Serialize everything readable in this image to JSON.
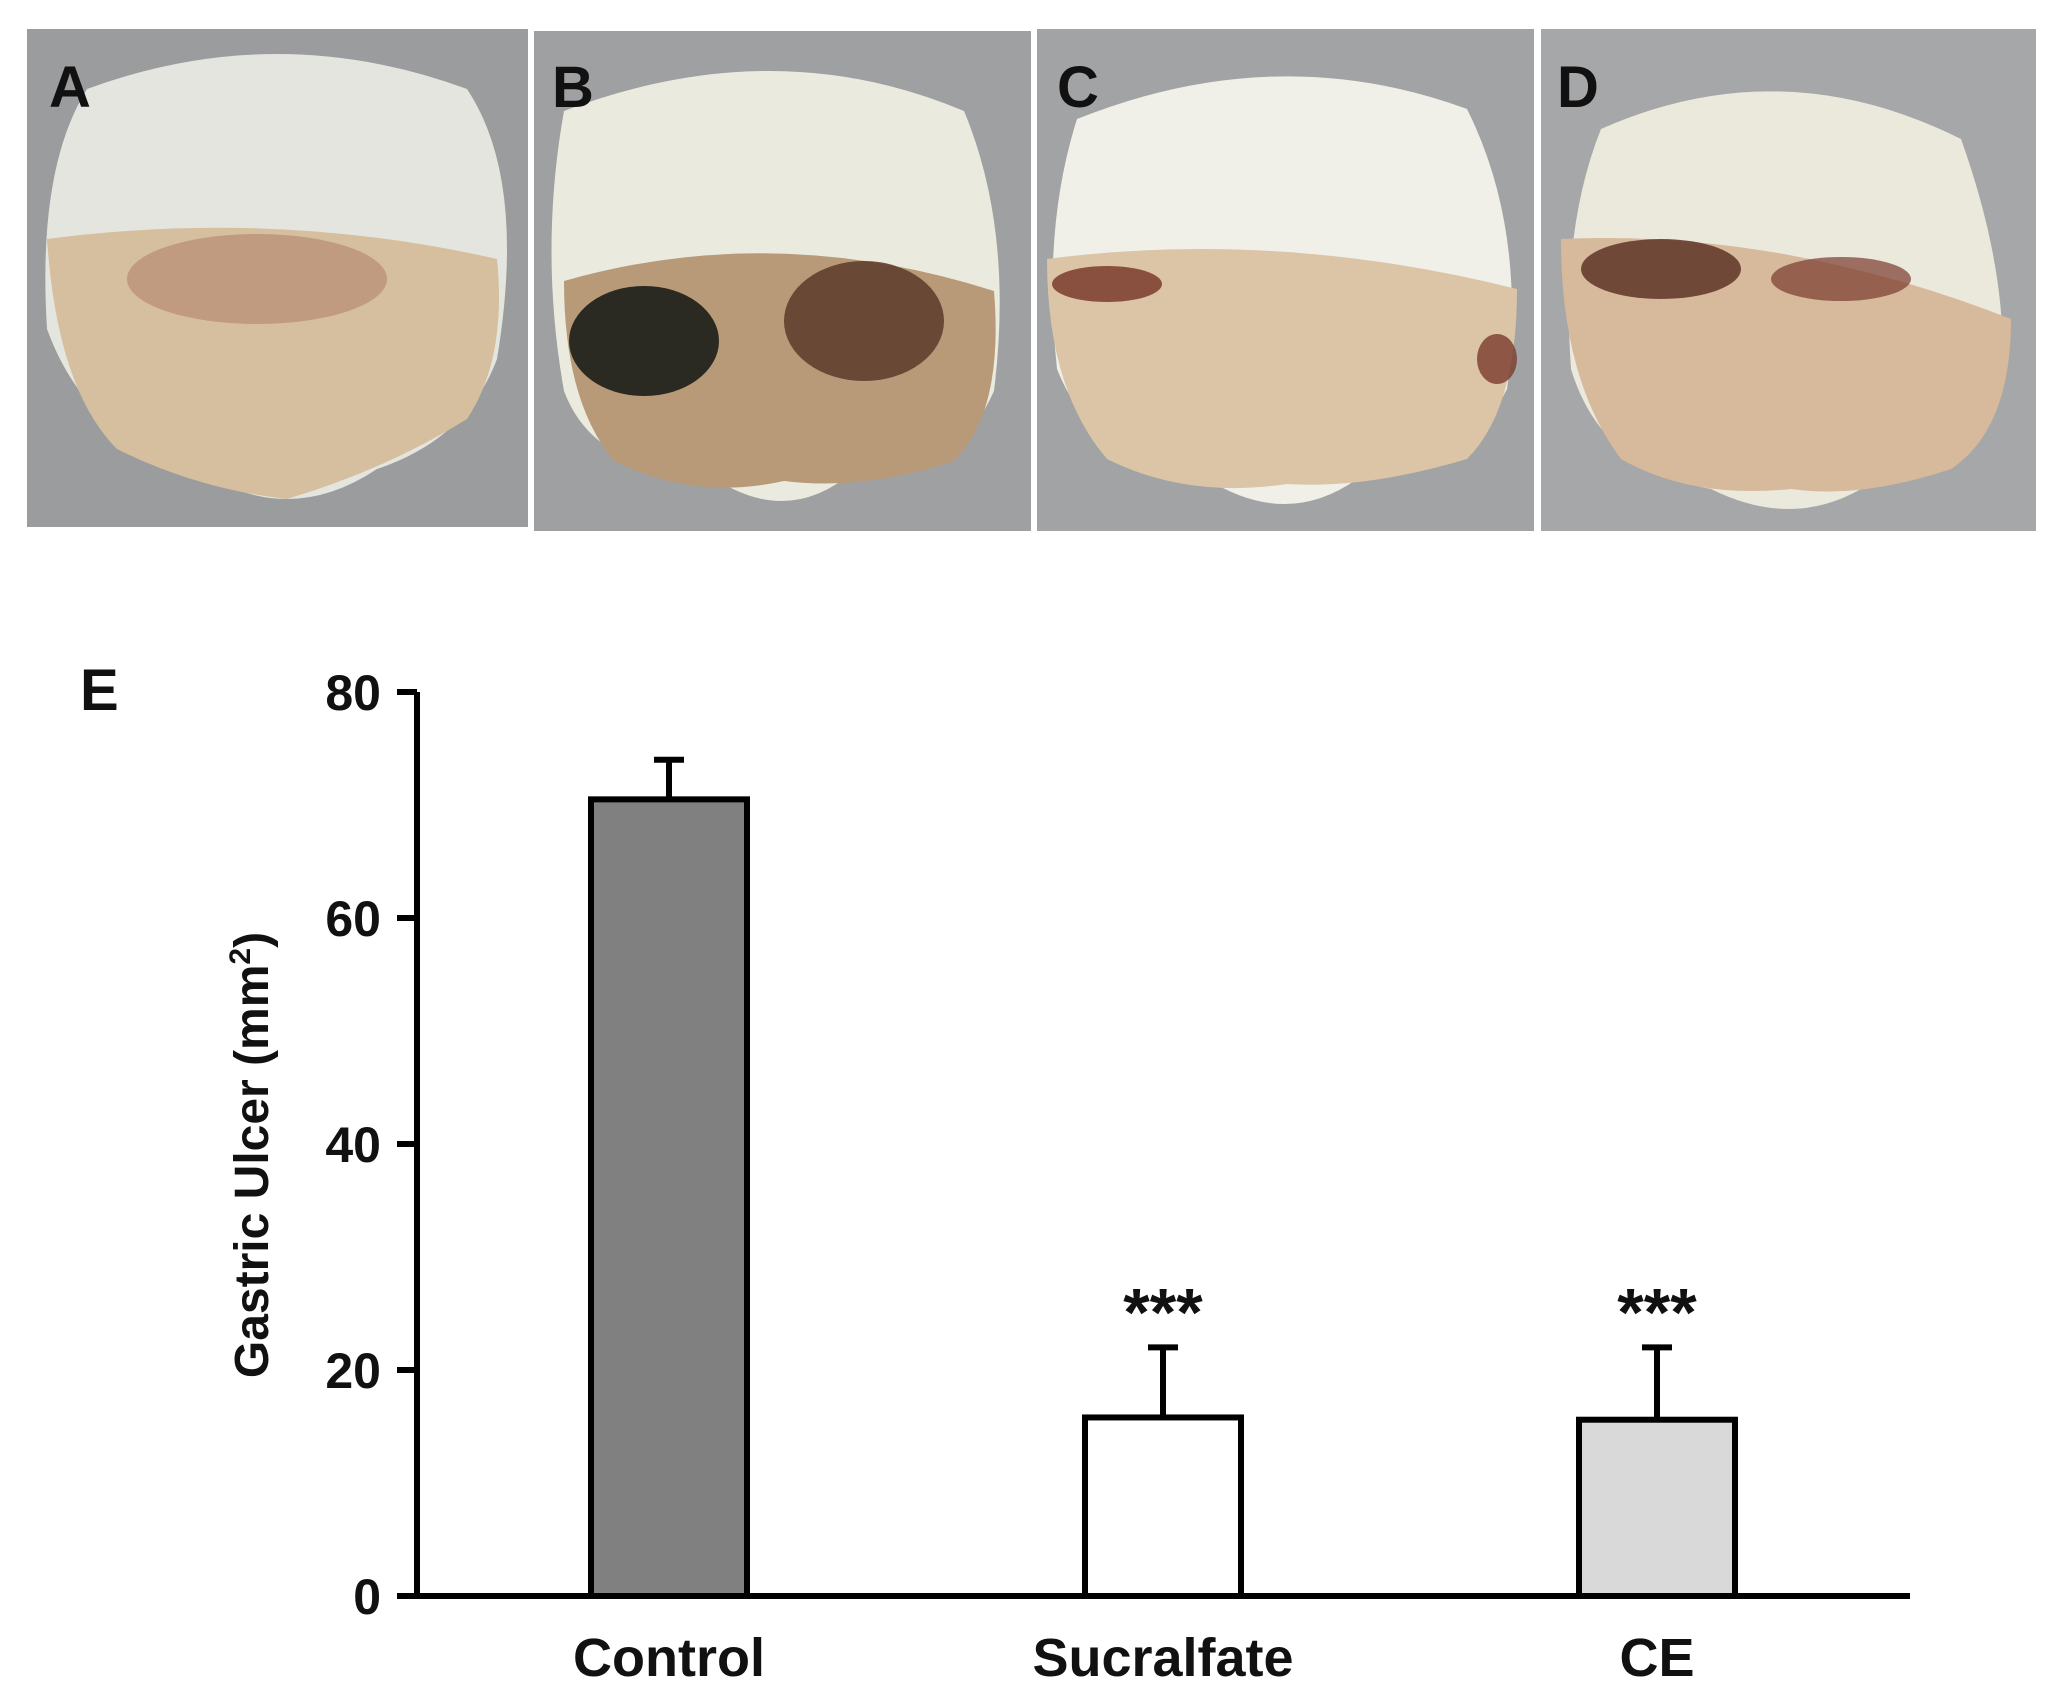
{
  "photo_panels": [
    {
      "letter": "A"
    },
    {
      "letter": "B"
    },
    {
      "letter": "C"
    },
    {
      "letter": "D"
    }
  ],
  "chart_panel_letter": "E",
  "chart_data": {
    "type": "bar",
    "categories": [
      "Control",
      "Sucralfate",
      "CE"
    ],
    "values": [
      70.5,
      15.8,
      15.6
    ],
    "errors": [
      3.5,
      6.2,
      6.4
    ],
    "significance": [
      "",
      "***",
      "***"
    ],
    "bar_colors": [
      "#808080",
      "#ffffff",
      "#d9d9d9"
    ],
    "ylabel": "Gastric Ulcer (mm",
    "ylabel_superscript": "2",
    "ylabel_suffix": ")",
    "ylim": [
      0,
      80
    ],
    "yticks": [
      0,
      20,
      40,
      60,
      80
    ],
    "grid": false,
    "legend": "none"
  }
}
